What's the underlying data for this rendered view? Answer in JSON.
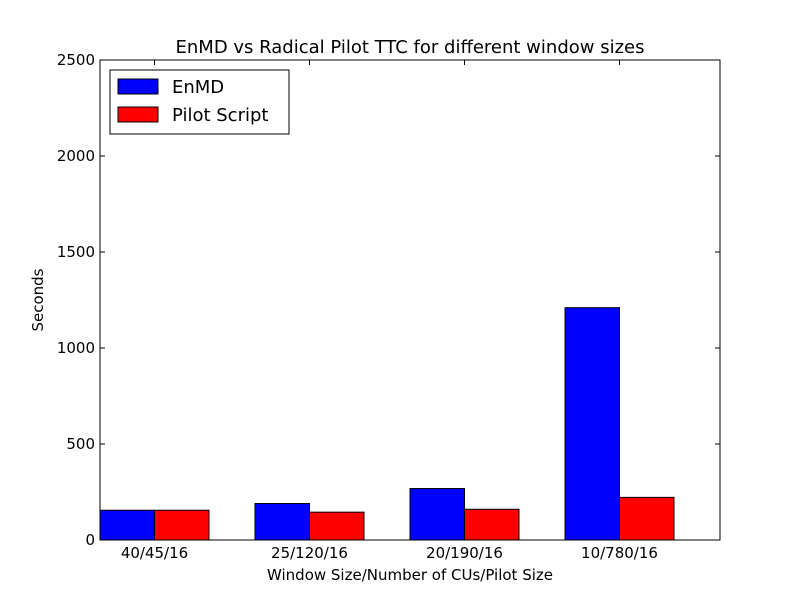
{
  "chart_data": {
    "type": "bar",
    "title": "EnMD vs Radical Pilot TTC for different window sizes",
    "xlabel": "Window Size/Number of CUs/Pilot Size",
    "ylabel": "Seconds",
    "categories": [
      "40/45/16",
      "25/120/16",
      "20/190/16",
      "10/780/16"
    ],
    "series": [
      {
        "name": "EnMD",
        "color": "#0000ff",
        "values": [
          155,
          190,
          268,
          1210
        ]
      },
      {
        "name": "Pilot Script",
        "color": "#ff0000",
        "values": [
          155,
          145,
          160,
          222
        ]
      }
    ],
    "ylim": [
      0,
      2500
    ],
    "yticks": [
      0,
      500,
      1000,
      1500,
      2000,
      2500
    ],
    "grid": false,
    "legend_position": "top-left"
  }
}
